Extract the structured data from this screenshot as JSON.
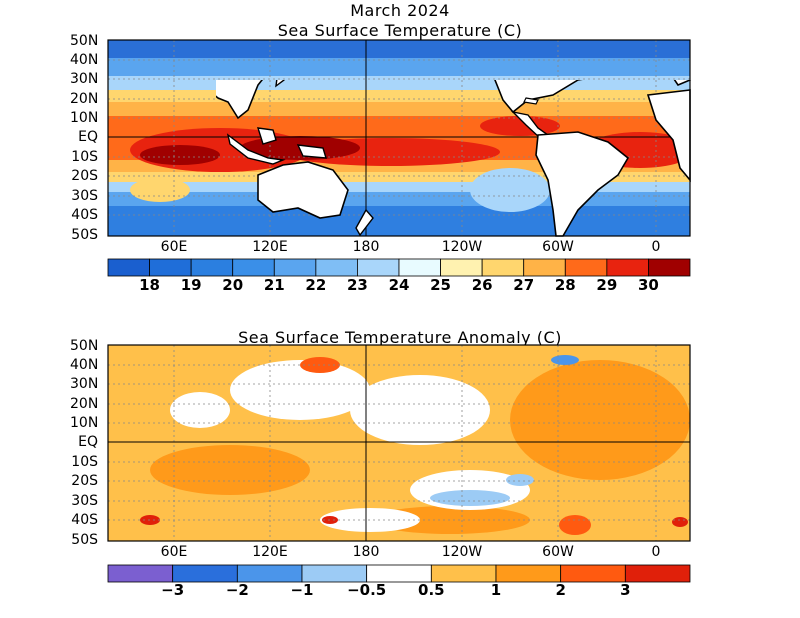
{
  "header": {
    "line1": "March 2024",
    "line2": "Sea Surface Temperature (C)"
  },
  "panels": [
    {
      "title": "",
      "lat_labels": [
        "50N",
        "40N",
        "30N",
        "20N",
        "10N",
        "EQ",
        "10S",
        "20S",
        "30S",
        "40S",
        "50S"
      ],
      "lon_labels": [
        "60E",
        "120E",
        "180",
        "120W",
        "60W",
        "0"
      ],
      "colorbar": {
        "labels": [
          "18",
          "19",
          "20",
          "21",
          "22",
          "23",
          "24",
          "25",
          "26",
          "27",
          "28",
          "29",
          "30"
        ],
        "colors": [
          "#1a5fcf",
          "#1f6ed9",
          "#2b7fe0",
          "#3a8fe8",
          "#5aa5ef",
          "#7fbef5",
          "#a9d6fa",
          "#e8fbff",
          "#fff2b0",
          "#ffd66e",
          "#ffb347",
          "#ff6a1a",
          "#e8230f",
          "#a00000"
        ]
      }
    },
    {
      "title": "Sea Surface Temperature Anomaly (C)",
      "lat_labels": [
        "50N",
        "40N",
        "30N",
        "20N",
        "10N",
        "EQ",
        "10S",
        "20S",
        "30S",
        "40S",
        "50S"
      ],
      "lon_labels": [
        "60E",
        "120E",
        "180",
        "120W",
        "60W",
        "0"
      ],
      "colorbar": {
        "labels": [
          "−3",
          "−2",
          "−1",
          "−0.5",
          "0.5",
          "1",
          "2",
          "3"
        ],
        "colors": [
          "#7b5fd0",
          "#2a6fdc",
          "#4b95ea",
          "#9ccbf5",
          "#ffffff",
          "#ffc04a",
          "#ff9a1a",
          "#ff5a10",
          "#e0200a"
        ]
      }
    }
  ]
}
